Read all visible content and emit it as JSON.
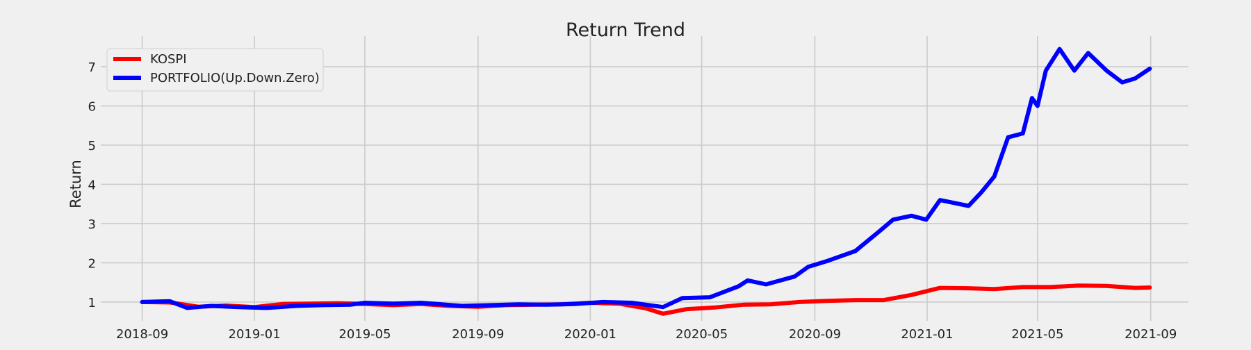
{
  "chart_data": {
    "type": "line",
    "title": "Return Trend",
    "xlabel": "",
    "ylabel": "Return",
    "x_ticks": [
      "2018-09",
      "2019-01",
      "2019-05",
      "2019-09",
      "2020-01",
      "2020-05",
      "2020-09",
      "2021-01",
      "2021-05",
      "2021-09"
    ],
    "y_ticks": [
      1,
      2,
      3,
      4,
      5,
      6,
      7
    ],
    "xlim": [
      "2018-07-18",
      "2021-10-12"
    ],
    "ylim": [
      0.52,
      7.78
    ],
    "grid": true,
    "legend_position": "top-left",
    "series": [
      {
        "name": "KOSPI",
        "color": "#ff0000",
        "points": [
          [
            "2018-09-01",
            1.0
          ],
          [
            "2018-10-01",
            0.99
          ],
          [
            "2018-11-01",
            0.88
          ],
          [
            "2018-12-01",
            0.91
          ],
          [
            "2019-01-01",
            0.87
          ],
          [
            "2019-02-01",
            0.95
          ],
          [
            "2019-03-01",
            0.96
          ],
          [
            "2019-04-01",
            0.97
          ],
          [
            "2019-05-01",
            0.95
          ],
          [
            "2019-06-01",
            0.92
          ],
          [
            "2019-07-01",
            0.95
          ],
          [
            "2019-08-01",
            0.9
          ],
          [
            "2019-09-01",
            0.88
          ],
          [
            "2019-10-01",
            0.92
          ],
          [
            "2019-11-01",
            0.93
          ],
          [
            "2019-12-01",
            0.94
          ],
          [
            "2020-01-01",
            0.98
          ],
          [
            "2020-02-01",
            0.96
          ],
          [
            "2020-03-01",
            0.84
          ],
          [
            "2020-03-20",
            0.7
          ],
          [
            "2020-04-15",
            0.82
          ],
          [
            "2020-05-15",
            0.86
          ],
          [
            "2020-06-15",
            0.93
          ],
          [
            "2020-07-15",
            0.94
          ],
          [
            "2020-08-15",
            1.0
          ],
          [
            "2020-09-15",
            1.03
          ],
          [
            "2020-10-15",
            1.05
          ],
          [
            "2020-11-15",
            1.05
          ],
          [
            "2020-12-15",
            1.18
          ],
          [
            "2021-01-15",
            1.36
          ],
          [
            "2021-02-15",
            1.35
          ],
          [
            "2021-03-15",
            1.33
          ],
          [
            "2021-04-15",
            1.38
          ],
          [
            "2021-05-15",
            1.38
          ],
          [
            "2021-06-15",
            1.42
          ],
          [
            "2021-07-15",
            1.41
          ],
          [
            "2021-08-15",
            1.36
          ],
          [
            "2021-08-31",
            1.37
          ]
        ]
      },
      {
        "name": "PORTFOLIO(Up.Down.Zero)",
        "color": "#0000ff",
        "points": [
          [
            "2018-09-01",
            1.0
          ],
          [
            "2018-10-01",
            1.02
          ],
          [
            "2018-10-20",
            0.85
          ],
          [
            "2018-11-15",
            0.9
          ],
          [
            "2018-12-15",
            0.87
          ],
          [
            "2019-01-15",
            0.85
          ],
          [
            "2019-02-15",
            0.9
          ],
          [
            "2019-03-15",
            0.92
          ],
          [
            "2019-04-15",
            0.93
          ],
          [
            "2019-05-01",
            0.98
          ],
          [
            "2019-06-01",
            0.96
          ],
          [
            "2019-07-01",
            0.98
          ],
          [
            "2019-08-15",
            0.9
          ],
          [
            "2019-09-15",
            0.92
          ],
          [
            "2019-10-15",
            0.94
          ],
          [
            "2019-11-15",
            0.93
          ],
          [
            "2019-12-15",
            0.95
          ],
          [
            "2020-01-15",
            1.0
          ],
          [
            "2020-02-15",
            0.98
          ],
          [
            "2020-03-20",
            0.87
          ],
          [
            "2020-04-10",
            1.1
          ],
          [
            "2020-05-10",
            1.12
          ],
          [
            "2020-06-10",
            1.4
          ],
          [
            "2020-06-20",
            1.55
          ],
          [
            "2020-07-10",
            1.45
          ],
          [
            "2020-08-10",
            1.65
          ],
          [
            "2020-08-25",
            1.9
          ],
          [
            "2020-09-15",
            2.05
          ],
          [
            "2020-10-15",
            2.3
          ],
          [
            "2020-11-10",
            2.8
          ],
          [
            "2020-11-25",
            3.1
          ],
          [
            "2020-12-15",
            3.2
          ],
          [
            "2020-12-31",
            3.1
          ],
          [
            "2021-01-15",
            3.6
          ],
          [
            "2021-02-15",
            3.45
          ],
          [
            "2021-03-01",
            3.8
          ],
          [
            "2021-03-15",
            4.2
          ],
          [
            "2021-03-30",
            5.2
          ],
          [
            "2021-04-15",
            5.3
          ],
          [
            "2021-04-25",
            6.2
          ],
          [
            "2021-05-01",
            6.0
          ],
          [
            "2021-05-10",
            6.9
          ],
          [
            "2021-05-25",
            7.45
          ],
          [
            "2021-06-10",
            6.9
          ],
          [
            "2021-06-25",
            7.35
          ],
          [
            "2021-07-15",
            6.9
          ],
          [
            "2021-08-01",
            6.6
          ],
          [
            "2021-08-15",
            6.7
          ],
          [
            "2021-08-31",
            6.95
          ]
        ]
      }
    ]
  }
}
